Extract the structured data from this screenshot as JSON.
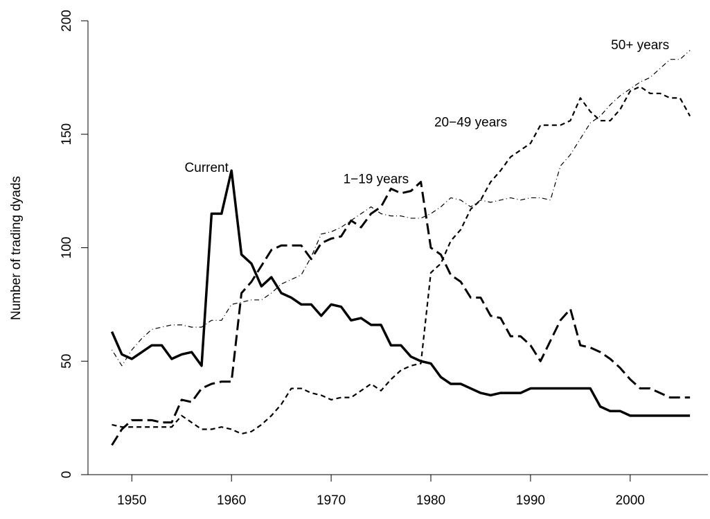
{
  "chart_data": {
    "type": "line",
    "y_label": "Number of trading dyads",
    "x": [
      1948,
      1949,
      1950,
      1951,
      1952,
      1953,
      1954,
      1955,
      1956,
      1957,
      1958,
      1959,
      1960,
      1961,
      1962,
      1963,
      1964,
      1965,
      1966,
      1967,
      1968,
      1969,
      1970,
      1971,
      1972,
      1973,
      1974,
      1975,
      1976,
      1977,
      1978,
      1979,
      1980,
      1981,
      1982,
      1983,
      1984,
      1985,
      1986,
      1987,
      1988,
      1989,
      1990,
      1991,
      1992,
      1993,
      1994,
      1995,
      1996,
      1997,
      1998,
      1999,
      2000,
      2001,
      2002,
      2003,
      2004,
      2005,
      2006
    ],
    "series": [
      {
        "name": "Current",
        "color": "#000000",
        "values": [
          63,
          53,
          51,
          54,
          57,
          57,
          51,
          53,
          54,
          48,
          115,
          115,
          134,
          97,
          93,
          83,
          87,
          80,
          78,
          75,
          75,
          70,
          75,
          74,
          68,
          69,
          66,
          66,
          57,
          57,
          52,
          50,
          49,
          43,
          40,
          40,
          38,
          36,
          35,
          36,
          36,
          36,
          38,
          38,
          38,
          38,
          38,
          38,
          38,
          30,
          28,
          28,
          26,
          26,
          26,
          26,
          26,
          26,
          26
        ]
      },
      {
        "name": "1−19 years",
        "color": "#000000",
        "values": [
          13,
          20,
          24,
          24,
          24,
          23,
          23,
          33,
          32,
          38,
          40,
          41,
          41,
          80,
          85,
          92,
          99,
          101,
          101,
          101,
          95,
          102,
          104,
          105,
          112,
          109,
          115,
          118,
          126,
          124,
          125,
          129,
          100,
          97,
          88,
          85,
          78,
          78,
          70,
          69,
          61,
          61,
          57,
          50,
          59,
          68,
          73,
          57,
          56,
          54,
          51,
          47,
          42,
          38,
          38,
          36,
          34,
          34,
          34
        ]
      },
      {
        "name": "20−49 years",
        "color": "#000000",
        "values": [
          22,
          21,
          21,
          21,
          21,
          21,
          21,
          26,
          23,
          20,
          20,
          21,
          20,
          18,
          19,
          22,
          26,
          31,
          38,
          38,
          36,
          35,
          33,
          34,
          34,
          37,
          40,
          37,
          42,
          46,
          48,
          49,
          89,
          93,
          103,
          108,
          117,
          121,
          129,
          134,
          140,
          143,
          146,
          154,
          154,
          154,
          156,
          166,
          160,
          156,
          156,
          161,
          169,
          171,
          168,
          168,
          166,
          166,
          158
        ]
      },
      {
        "name": "50+ years",
        "color": "#000000",
        "values": [
          55,
          48,
          55,
          60,
          64,
          65,
          66,
          66,
          65,
          65,
          68,
          68,
          75,
          76,
          77,
          77,
          80,
          84,
          86,
          88,
          96,
          106,
          107,
          109,
          112,
          115,
          118,
          115,
          114,
          114,
          113,
          113,
          115,
          118,
          122,
          121,
          118,
          121,
          120,
          121,
          122,
          121,
          122,
          122,
          121,
          136,
          141,
          148,
          155,
          158,
          163,
          167,
          170,
          173,
          175,
          179,
          183,
          183,
          187
        ]
      }
    ],
    "xlim": [
      1945.6,
      2007.8
    ],
    "xticks": [
      1950,
      1960,
      1970,
      1980,
      1990,
      2000
    ],
    "ylim": [
      0,
      200
    ],
    "yticks": [
      0,
      50,
      100,
      150,
      200
    ]
  }
}
